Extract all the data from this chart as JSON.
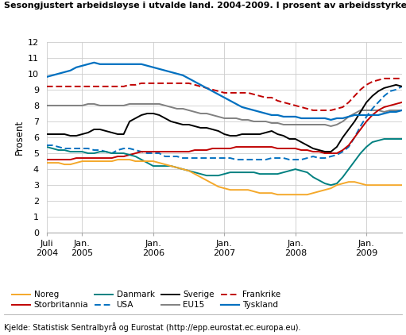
{
  "title": "Sesongjustert arbeidsløyse i utvalde land. 2004-2009. I prosent av arbeidsstyrken",
  "ylabel": "Prosent",
  "source": "Kjelde: Statistisk Sentralbyrå og Eurostat (http://epp.eurostat.ec.europa.eu).",
  "ylim": [
    0,
    12
  ],
  "yticks": [
    0,
    1,
    2,
    3,
    4,
    5,
    6,
    7,
    8,
    9,
    10,
    11,
    12
  ],
  "background_color": "#ffffff",
  "grid_color": "#cccccc",
  "series": {
    "Noreg": {
      "color": "#f4a82a",
      "linestyle": "-",
      "linewidth": 1.4,
      "values": [
        4.4,
        4.4,
        4.4,
        4.3,
        4.3,
        4.4,
        4.5,
        4.5,
        4.5,
        4.5,
        4.5,
        4.5,
        4.6,
        4.6,
        4.6,
        4.5,
        4.5,
        4.5,
        4.5,
        4.4,
        4.3,
        4.2,
        4.1,
        4.0,
        3.9,
        3.7,
        3.5,
        3.3,
        3.1,
        2.9,
        2.8,
        2.7,
        2.7,
        2.7,
        2.7,
        2.6,
        2.5,
        2.5,
        2.5,
        2.4,
        2.4,
        2.4,
        2.4,
        2.4,
        2.4,
        2.5,
        2.6,
        2.7,
        2.8,
        3.0,
        3.1,
        3.2,
        3.2,
        3.1,
        3.0,
        3.0,
        3.0,
        3.0,
        3.0,
        3.0,
        3.0
      ]
    },
    "Sverige": {
      "color": "#000000",
      "linestyle": "-",
      "linewidth": 1.4,
      "values": [
        6.2,
        6.2,
        6.2,
        6.2,
        6.1,
        6.1,
        6.2,
        6.3,
        6.5,
        6.5,
        6.4,
        6.3,
        6.2,
        6.2,
        7.0,
        7.2,
        7.4,
        7.5,
        7.5,
        7.4,
        7.2,
        7.0,
        6.9,
        6.8,
        6.8,
        6.7,
        6.6,
        6.6,
        6.5,
        6.4,
        6.2,
        6.1,
        6.1,
        6.2,
        6.2,
        6.2,
        6.2,
        6.3,
        6.4,
        6.2,
        6.1,
        5.9,
        5.9,
        5.7,
        5.5,
        5.3,
        5.2,
        5.1,
        5.1,
        5.4,
        6.0,
        6.5,
        7.0,
        7.6,
        8.2,
        8.6,
        8.9,
        9.1,
        9.2,
        9.3,
        9.2
      ]
    },
    "Storbritannia": {
      "color": "#c00000",
      "linestyle": "-",
      "linewidth": 1.4,
      "values": [
        4.6,
        4.6,
        4.6,
        4.6,
        4.6,
        4.7,
        4.7,
        4.7,
        4.7,
        4.7,
        4.7,
        4.7,
        4.8,
        4.8,
        4.9,
        5.0,
        5.1,
        5.1,
        5.1,
        5.1,
        5.1,
        5.1,
        5.1,
        5.1,
        5.1,
        5.2,
        5.2,
        5.2,
        5.3,
        5.3,
        5.3,
        5.3,
        5.4,
        5.4,
        5.4,
        5.4,
        5.4,
        5.4,
        5.4,
        5.3,
        5.3,
        5.3,
        5.3,
        5.2,
        5.2,
        5.1,
        5.1,
        5.0,
        5.0,
        5.0,
        5.2,
        5.5,
        6.0,
        6.5,
        7.0,
        7.4,
        7.7,
        7.9,
        8.0,
        8.1,
        8.2
      ]
    },
    "EU15": {
      "color": "#808080",
      "linestyle": "-",
      "linewidth": 1.4,
      "values": [
        8.0,
        8.0,
        8.0,
        8.0,
        8.0,
        8.0,
        8.0,
        8.1,
        8.1,
        8.0,
        8.0,
        8.0,
        8.0,
        8.0,
        8.1,
        8.1,
        8.1,
        8.1,
        8.1,
        8.1,
        8.0,
        7.9,
        7.8,
        7.8,
        7.7,
        7.6,
        7.5,
        7.5,
        7.4,
        7.3,
        7.2,
        7.2,
        7.2,
        7.1,
        7.1,
        7.0,
        7.0,
        7.0,
        6.9,
        6.9,
        6.8,
        6.8,
        6.8,
        6.8,
        6.8,
        6.8,
        6.8,
        6.8,
        6.7,
        6.8,
        7.0,
        7.3,
        7.5,
        7.7,
        7.7,
        7.7,
        7.7,
        7.6,
        7.7,
        7.7,
        7.7
      ]
    },
    "Danmark": {
      "color": "#008080",
      "linestyle": "-",
      "linewidth": 1.4,
      "values": [
        5.4,
        5.3,
        5.2,
        5.2,
        5.1,
        5.1,
        5.1,
        5.0,
        5.0,
        5.1,
        5.1,
        5.0,
        5.0,
        5.0,
        4.9,
        4.8,
        4.6,
        4.4,
        4.2,
        4.2,
        4.2,
        4.2,
        4.1,
        4.0,
        3.9,
        3.8,
        3.7,
        3.6,
        3.6,
        3.6,
        3.7,
        3.8,
        3.8,
        3.8,
        3.8,
        3.8,
        3.7,
        3.7,
        3.7,
        3.7,
        3.8,
        3.9,
        4.0,
        3.9,
        3.8,
        3.5,
        3.3,
        3.1,
        3.0,
        3.1,
        3.5,
        4.0,
        4.5,
        5.0,
        5.4,
        5.7,
        5.8,
        5.9,
        5.9,
        5.9,
        5.9
      ]
    },
    "Frankrike": {
      "color": "#c00000",
      "linestyle": "--",
      "linewidth": 1.4,
      "dashes": [
        4,
        2
      ],
      "values": [
        9.2,
        9.2,
        9.2,
        9.2,
        9.2,
        9.2,
        9.2,
        9.2,
        9.2,
        9.2,
        9.2,
        9.2,
        9.2,
        9.2,
        9.3,
        9.3,
        9.4,
        9.4,
        9.4,
        9.4,
        9.4,
        9.4,
        9.4,
        9.4,
        9.4,
        9.3,
        9.2,
        9.1,
        9.0,
        8.9,
        8.8,
        8.8,
        8.8,
        8.8,
        8.8,
        8.7,
        8.6,
        8.5,
        8.5,
        8.3,
        8.2,
        8.1,
        8.0,
        7.9,
        7.8,
        7.7,
        7.7,
        7.7,
        7.7,
        7.8,
        7.9,
        8.2,
        8.6,
        9.0,
        9.3,
        9.5,
        9.6,
        9.7,
        9.7,
        9.7,
        9.7
      ]
    },
    "USA": {
      "color": "#0070c0",
      "linestyle": "--",
      "linewidth": 1.4,
      "dashes": [
        4,
        2
      ],
      "values": [
        5.5,
        5.5,
        5.4,
        5.3,
        5.3,
        5.3,
        5.3,
        5.3,
        5.2,
        5.2,
        5.1,
        5.0,
        5.2,
        5.3,
        5.3,
        5.2,
        5.1,
        5.0,
        5.0,
        5.0,
        4.8,
        4.8,
        4.8,
        4.7,
        4.7,
        4.7,
        4.7,
        4.7,
        4.7,
        4.7,
        4.7,
        4.7,
        4.6,
        4.6,
        4.6,
        4.6,
        4.6,
        4.6,
        4.7,
        4.7,
        4.7,
        4.6,
        4.6,
        4.6,
        4.7,
        4.8,
        4.7,
        4.7,
        4.8,
        4.9,
        5.1,
        5.4,
        6.0,
        6.7,
        7.3,
        7.8,
        8.2,
        8.6,
        8.9,
        9.0,
        9.2
      ]
    },
    "Tyskland": {
      "color": "#0070c0",
      "linestyle": "-",
      "linewidth": 1.6,
      "values": [
        9.8,
        9.9,
        10.0,
        10.1,
        10.2,
        10.4,
        10.5,
        10.6,
        10.7,
        10.6,
        10.6,
        10.6,
        10.6,
        10.6,
        10.6,
        10.6,
        10.6,
        10.5,
        10.4,
        10.3,
        10.2,
        10.1,
        10.0,
        9.9,
        9.7,
        9.5,
        9.3,
        9.1,
        8.9,
        8.7,
        8.5,
        8.3,
        8.1,
        7.9,
        7.8,
        7.7,
        7.6,
        7.5,
        7.4,
        7.4,
        7.3,
        7.3,
        7.3,
        7.2,
        7.2,
        7.2,
        7.2,
        7.2,
        7.1,
        7.2,
        7.2,
        7.3,
        7.4,
        7.4,
        7.4,
        7.4,
        7.4,
        7.5,
        7.6,
        7.6,
        7.7
      ]
    }
  },
  "x_tick_positions": [
    0,
    6,
    18,
    30,
    42,
    54
  ],
  "x_tick_labels": [
    "Juli\n2004",
    "Jan.\n2005",
    "Jan.\n2006",
    "Jan.\n2007",
    "Jan.\n2008",
    "Jan.\n2009"
  ],
  "legend_row1": [
    "Noreg",
    "Storbritannia",
    "Danmark",
    "USA"
  ],
  "legend_row2": [
    "Sverige",
    "EU15",
    "Frankrike",
    "Tyskland"
  ]
}
